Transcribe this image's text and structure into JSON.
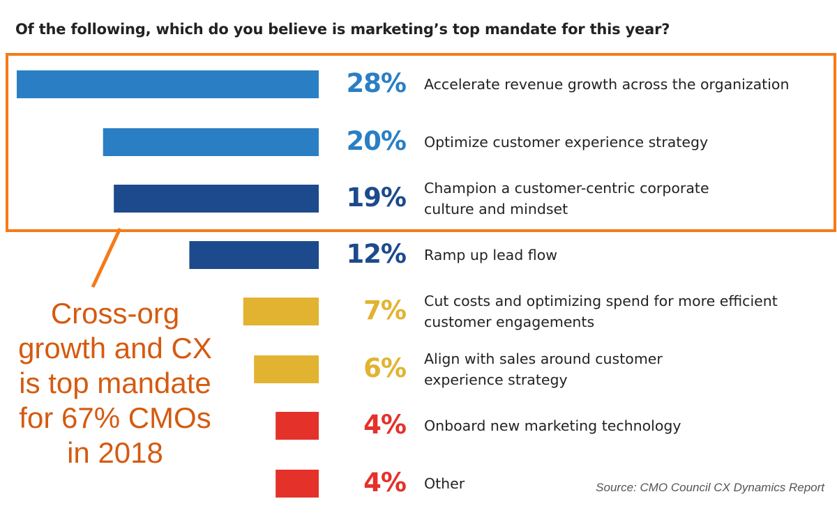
{
  "chart_data": {
    "type": "bar",
    "orientation": "horizontal",
    "title": "Of the following, which do you believe is marketing’s top mandate for this year?",
    "categories": [
      "Accelerate revenue growth across the organization",
      "Optimize customer experience strategy",
      "Champion a customer-centric corporate culture and mindset",
      "Ramp up lead flow",
      "Cut costs and optimizing spend for more efficient customer engagements",
      "Align with sales around customer experience strategy",
      "Onboard new marketing technology",
      "Other"
    ],
    "label_lines": [
      [
        "Accelerate revenue growth across the organization"
      ],
      [
        "Optimize customer experience strategy"
      ],
      [
        "Champion a customer-centric corporate",
        "culture and mindset"
      ],
      [
        "Ramp up lead flow"
      ],
      [
        "Cut costs and optimizing spend for more efficient",
        "customer engagements"
      ],
      [
        "Align with sales around customer",
        "experience strategy"
      ],
      [
        "Onboard new marketing technology"
      ],
      [
        "Other"
      ]
    ],
    "values": [
      28,
      20,
      19,
      12,
      7,
      6,
      4,
      4
    ],
    "data_labels": [
      "28%",
      "20%",
      "19%",
      "12%",
      "7%",
      "6%",
      "4%",
      "4%"
    ],
    "colors": [
      "#2a7fc4",
      "#2a7fc4",
      "#1c4a8c",
      "#1c4a8c",
      "#e2b331",
      "#e2b331",
      "#e4322b",
      "#e4322b"
    ],
    "xlim": [
      0,
      28
    ],
    "grid": false,
    "highlight": {
      "rows": [
        0,
        1,
        2
      ],
      "color": "#f57a18"
    }
  },
  "annotation": {
    "lines": [
      "Cross-org",
      "growth and CX",
      "is top mandate",
      "for 67% CMOs",
      "in 2018"
    ],
    "color": "#d55a10"
  },
  "source": "Source: CMO Council CX Dynamics Report"
}
